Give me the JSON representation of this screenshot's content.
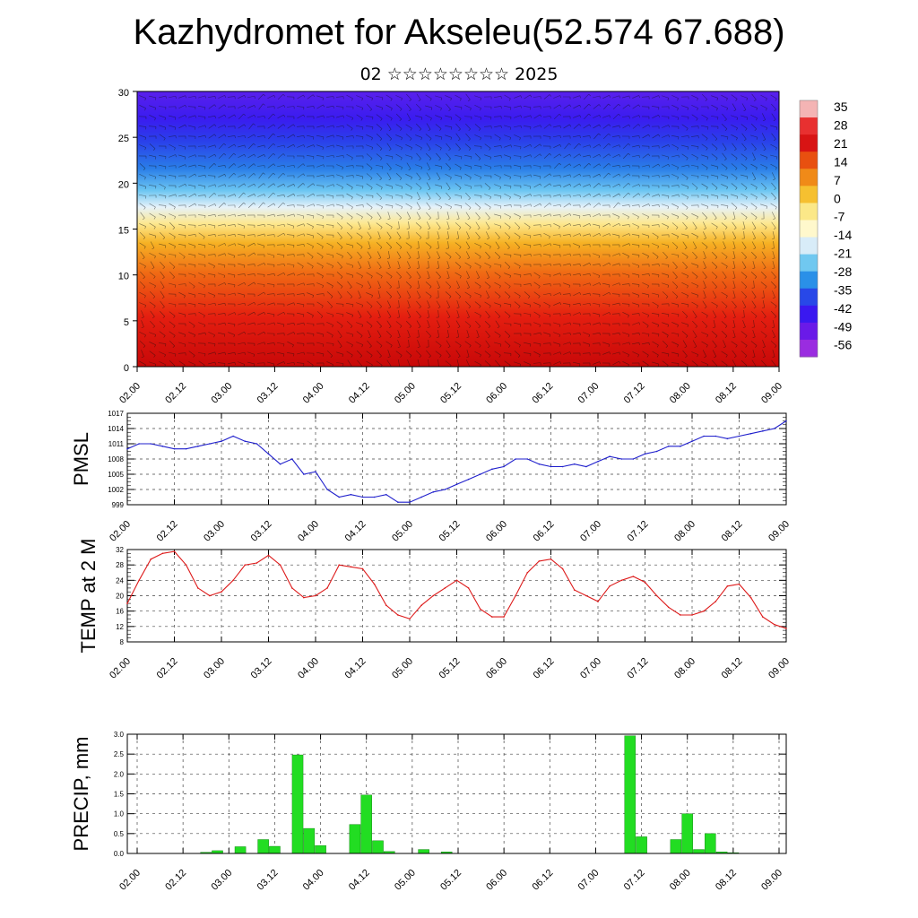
{
  "title": "Kazhydromet for Akseleu(52.574 67.688)",
  "subtitle": "02 ☆☆☆☆☆☆☆☆ 2025",
  "time_labels": [
    "02.00",
    "02.12",
    "03.00",
    "03.12",
    "04.00",
    "04.12",
    "05.00",
    "05.12",
    "06.00",
    "06.12",
    "07.00",
    "07.12",
    "08.00",
    "08.12",
    "09.00"
  ],
  "colors": {
    "pmsl_line": "#1f1fcc",
    "temp_line": "#dd1a1a",
    "precip_bar": "#22dd22",
    "grid": "#444444"
  },
  "chart_data": [
    {
      "type": "heatmap",
      "title": "",
      "ylim": [
        0,
        30
      ],
      "y_ticks": [
        0,
        5,
        10,
        15,
        20,
        25,
        30
      ],
      "colorbar": {
        "labels": [
          "35",
          "28",
          "21",
          "14",
          "7",
          "0",
          "-7",
          "-14",
          "-21",
          "-28",
          "-35",
          "-42",
          "-49",
          "-56"
        ],
        "colors": [
          "#f4b4b4",
          "#e83030",
          "#d81414",
          "#e85010",
          "#f08a18",
          "#f6c030",
          "#fbe888",
          "#fff8cc",
          "#d8ecf8",
          "#70c8f0",
          "#2a90e8",
          "#2848e8",
          "#3a18f0",
          "#6a1ae8",
          "#9a2ce0"
        ],
        "placement": "right"
      },
      "band_profile": [
        {
          "level": 0,
          "value": 30
        },
        {
          "level": 5,
          "value": 22
        },
        {
          "level": 10,
          "value": 12
        },
        {
          "level": 15,
          "value": -8
        },
        {
          "level": 18,
          "value": -22
        },
        {
          "level": 21,
          "value": -35
        },
        {
          "level": 24,
          "value": -48
        },
        {
          "level": 27,
          "value": -56
        },
        {
          "level": 30,
          "value": -58
        }
      ],
      "overlay": "wind barbs"
    },
    {
      "type": "line",
      "ylabel": "PMSL",
      "ylim": [
        999,
        1017
      ],
      "y_ticks": [
        999,
        1002,
        1005,
        1008,
        1011,
        1014,
        1017
      ],
      "x": [
        0,
        3,
        6,
        9,
        12,
        15,
        18,
        21,
        24,
        27,
        30,
        33,
        36,
        39,
        42,
        45,
        48,
        51,
        54,
        57,
        60,
        63,
        66,
        69,
        72,
        75,
        78,
        81,
        84,
        87,
        90,
        93,
        96,
        99,
        102,
        105,
        108,
        111,
        114,
        117,
        120,
        123,
        126,
        129,
        132,
        135,
        138,
        141,
        144,
        147,
        150,
        153,
        156,
        159,
        162,
        165,
        168
      ],
      "series": [
        {
          "values": [
            1010,
            1011,
            1011,
            1010.5,
            1010,
            1010,
            1010.5,
            1011,
            1011.5,
            1012.5,
            1011.5,
            1011,
            1009,
            1007,
            1008,
            1005,
            1005.5,
            1002,
            1000.5,
            1001,
            1000.5,
            1000.5,
            1001,
            999.5,
            999.5,
            1000.5,
            1001.5,
            1002,
            1003,
            1004,
            1005,
            1006,
            1006.5,
            1008,
            1008,
            1007,
            1006.5,
            1006.5,
            1007,
            1006.5,
            1007.5,
            1008.5,
            1008,
            1008,
            1009,
            1009.5,
            1010.5,
            1010.5,
            1011.5,
            1012.5,
            1012.5,
            1012,
            1012.5,
            1013,
            1013.5,
            1014,
            1015.5
          ]
        }
      ]
    },
    {
      "type": "line",
      "ylabel": "TEMP at 2 M",
      "ylim": [
        8,
        32
      ],
      "y_ticks": [
        8,
        12,
        16,
        20,
        24,
        28,
        32
      ],
      "x": [
        0,
        3,
        6,
        9,
        12,
        15,
        18,
        21,
        24,
        27,
        30,
        33,
        36,
        39,
        42,
        45,
        48,
        51,
        54,
        57,
        60,
        63,
        66,
        69,
        72,
        75,
        78,
        81,
        84,
        87,
        90,
        93,
        96,
        99,
        102,
        105,
        108,
        111,
        114,
        117,
        120,
        123,
        126,
        129,
        132,
        135,
        138,
        141,
        144,
        147,
        150,
        153,
        156,
        159,
        162,
        165,
        168
      ],
      "series": [
        {
          "values": [
            18,
            24,
            29.5,
            31,
            31.5,
            28,
            22,
            20,
            21,
            24,
            28,
            28.5,
            30.5,
            28,
            22,
            19.5,
            20,
            22,
            28,
            27.5,
            27,
            23,
            17.5,
            15,
            14,
            17.5,
            20,
            22,
            24,
            22,
            16.5,
            14.5,
            14.5,
            20,
            26,
            29,
            29.5,
            27,
            21.5,
            20,
            18.5,
            22.5,
            24,
            25,
            23.5,
            20,
            17,
            15,
            15,
            16,
            18.5,
            22.5,
            23,
            19.5,
            14.5,
            12.5,
            11.5
          ]
        }
      ]
    },
    {
      "type": "bar",
      "ylabel": "PRECIP, mm",
      "ylim": [
        0,
        3.0
      ],
      "y_ticks": [
        "0.0",
        "0.5",
        "1.0",
        "1.5",
        "2.0",
        "2.5",
        "3.0"
      ],
      "x": [
        18,
        21,
        27,
        33,
        36,
        42,
        45,
        48,
        57,
        60,
        63,
        66,
        75,
        81,
        129,
        132,
        141,
        144,
        147,
        150,
        153,
        156
      ],
      "values": [
        0.03,
        0.07,
        0.17,
        0.35,
        0.18,
        2.48,
        0.63,
        0.2,
        0.73,
        1.47,
        0.32,
        0.05,
        0.1,
        0.04,
        2.96,
        0.42,
        0.35,
        1.0,
        0.1,
        0.5,
        0.04,
        0.02
      ]
    }
  ]
}
